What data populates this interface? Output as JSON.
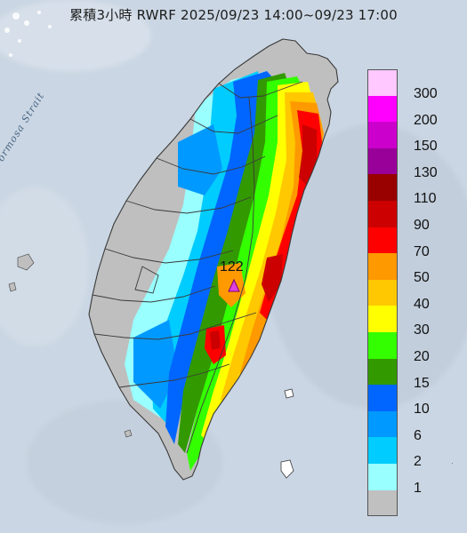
{
  "title": "累積3小時 RWRF 2025/09/23 14:00~09/23 17:00",
  "strait_label": "Formosa Strait",
  "peak": {
    "value": "122",
    "marker_color": "#e040e0"
  },
  "legend": {
    "items": [
      {
        "label": "300",
        "color": "#ffc8ff"
      },
      {
        "label": "200",
        "color": "#ff00ff"
      },
      {
        "label": "150",
        "color": "#cc00cc"
      },
      {
        "label": "130",
        "color": "#990099"
      },
      {
        "label": "110",
        "color": "#990000"
      },
      {
        "label": "90",
        "color": "#cc0000"
      },
      {
        "label": "70",
        "color": "#ff0000"
      },
      {
        "label": "50",
        "color": "#ff9900"
      },
      {
        "label": "40",
        "color": "#ffc800"
      },
      {
        "label": "30",
        "color": "#ffff00"
      },
      {
        "label": "20",
        "color": "#33ff00"
      },
      {
        "label": "15",
        "color": "#339900"
      },
      {
        "label": "10",
        "color": "#0066ff"
      },
      {
        "label": "6",
        "color": "#0099ff"
      },
      {
        "label": "2",
        "color": "#00ccff"
      },
      {
        "label": "1",
        "color": "#99ffff"
      },
      {
        "label": "",
        "color": "#c0c0c0"
      }
    ]
  }
}
